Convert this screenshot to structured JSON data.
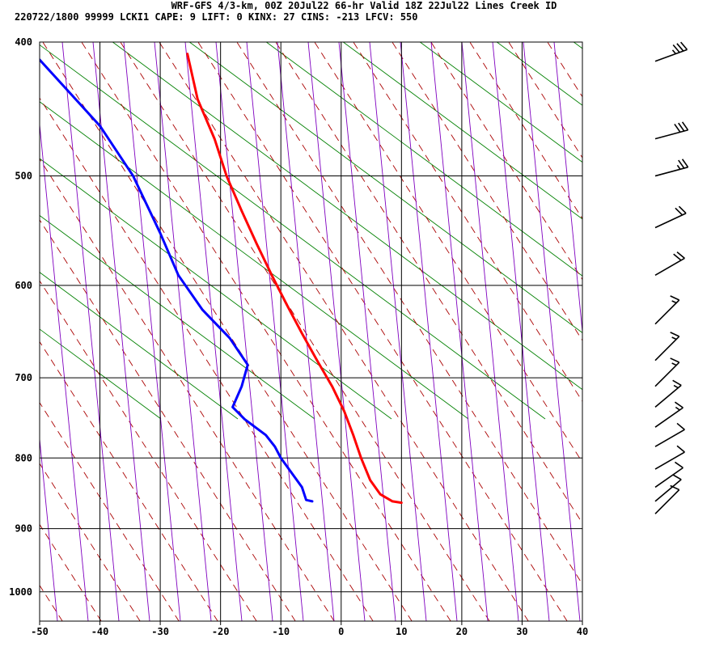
{
  "header": {
    "line1": "WRF-GFS 4/3-km, 00Z 20Jul22 66-hr Valid 18Z 22Jul22 Lines Creek ID",
    "line2": "220722/1800 99999  LCKI1   CAPE:     9 LIFT:     0 KINX:    27 CINS:  -213 LFCV:   550"
  },
  "chart_data": {
    "type": "line",
    "subtype": "skew-t log-p sounding",
    "x_ticks": [
      -50,
      -40,
      -30,
      -20,
      -10,
      0,
      10,
      20,
      30,
      40
    ],
    "x_tick_labels": [
      "-50",
      "-40",
      "-30",
      "-20",
      "-10",
      "0",
      "10",
      "20",
      "30",
      "40"
    ],
    "y_ticks": [
      400,
      500,
      600,
      700,
      800,
      900,
      1000
    ],
    "y_tick_labels": [
      "400",
      "500",
      "600",
      "700",
      "800",
      "900",
      "1000"
    ],
    "xlim": [
      -50,
      40
    ],
    "ylim": [
      1050,
      400
    ],
    "y_scale": "log",
    "grid": true,
    "series": [
      {
        "color": "#ff0000",
        "pressure": [
          408,
          440,
          470,
          500,
          530,
          560,
          590,
          620,
          650,
          680,
          710,
          740,
          770,
          800,
          830,
          850,
          860,
          862
        ],
        "x": [
          -25.5,
          -23.8,
          -21.0,
          -19.0,
          -16.5,
          -14.0,
          -11.5,
          -9.0,
          -6.5,
          -4.0,
          -1.5,
          0.5,
          2.0,
          3.3,
          4.8,
          6.5,
          8.5,
          10.0
        ]
      },
      {
        "color": "#0000ff",
        "pressure": [
          412,
          460,
          500,
          550,
          590,
          625,
          655,
          685,
          710,
          735,
          750,
          770,
          785,
          800,
          840,
          858,
          860
        ],
        "x": [
          -50.0,
          -40.0,
          -34.5,
          -30.0,
          -27.0,
          -23.0,
          -18.5,
          -15.5,
          -16.5,
          -18.0,
          -16.0,
          -12.5,
          -11.0,
          -10.0,
          -6.5,
          -5.8,
          -4.8
        ]
      }
    ],
    "wind_barbs": {
      "color": "#000000",
      "barbs": [
        {
          "pressure": 413,
          "dir": 250,
          "speed_kt": 35
        },
        {
          "pressure": 470,
          "dir": 255,
          "speed_kt": 30
        },
        {
          "pressure": 500,
          "dir": 255,
          "speed_kt": 25
        },
        {
          "pressure": 545,
          "dir": 245,
          "speed_kt": 20
        },
        {
          "pressure": 590,
          "dir": 240,
          "speed_kt": 20
        },
        {
          "pressure": 640,
          "dir": 225,
          "speed_kt": 15
        },
        {
          "pressure": 680,
          "dir": 225,
          "speed_kt": 15
        },
        {
          "pressure": 710,
          "dir": 225,
          "speed_kt": 15
        },
        {
          "pressure": 735,
          "dir": 230,
          "speed_kt": 15
        },
        {
          "pressure": 760,
          "dir": 235,
          "speed_kt": 15
        },
        {
          "pressure": 785,
          "dir": 240,
          "speed_kt": 10
        },
        {
          "pressure": 815,
          "dir": 240,
          "speed_kt": 10
        },
        {
          "pressure": 840,
          "dir": 235,
          "speed_kt": 10
        },
        {
          "pressure": 860,
          "dir": 230,
          "speed_kt": 10
        },
        {
          "pressure": 878,
          "dir": 225,
          "speed_kt": 10
        }
      ]
    },
    "background_lines": {
      "dry_adiabats_color": "#008000",
      "moist_adiabats_color": "#aa0000",
      "mixing_ratio_color": "#8000c0"
    }
  }
}
